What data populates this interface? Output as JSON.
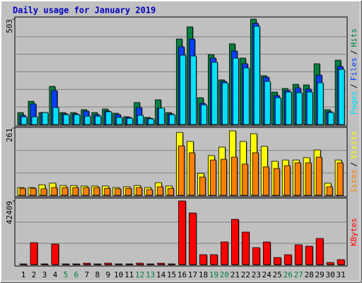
{
  "chart_data": [
    {
      "type": "bar",
      "title": "Daily usage for January 2019",
      "ylim": [
        0,
        503
      ],
      "yticks": [
        503
      ],
      "grid": true,
      "grid_divisions": 6,
      "legend_separator": "/",
      "series": [
        {
          "name": "Hits",
          "color": "#008040",
          "values": [
            57,
            111,
            57,
            182,
            57,
            57,
            71,
            57,
            74,
            54,
            37,
            105,
            34,
            118,
            57,
            408,
            466,
            128,
            334,
            213,
            385,
            317,
            503,
            233,
            155,
            172,
            192,
            189,
            290,
            71,
            307
          ]
        },
        {
          "name": "Files",
          "color": "#0040ff",
          "values": [
            44,
            98,
            57,
            162,
            51,
            51,
            64,
            47,
            64,
            47,
            34,
            81,
            30,
            78,
            51,
            371,
            408,
            101,
            317,
            206,
            351,
            290,
            483,
            226,
            138,
            162,
            175,
            169,
            236,
            61,
            277
          ]
        },
        {
          "name": "Pages",
          "color": "#00e0ff",
          "values": [
            37,
            37,
            57,
            81,
            47,
            47,
            40,
            40,
            61,
            34,
            30,
            44,
            27,
            78,
            47,
            331,
            327,
            94,
            297,
            199,
            317,
            270,
            469,
            206,
            128,
            155,
            152,
            155,
            199,
            57,
            263
          ]
        }
      ]
    },
    {
      "type": "bar",
      "ylim": [
        0,
        261
      ],
      "yticks": [
        261
      ],
      "grid": true,
      "grid_divisions": 3,
      "legend_separator": "/",
      "series": [
        {
          "name": "Visits",
          "color": "#ffff00",
          "values": [
            30,
            30,
            41,
            47,
            38,
            38,
            36,
            36,
            36,
            30,
            33,
            38,
            30,
            49,
            36,
            244,
            209,
            85,
            154,
            187,
            250,
            209,
            239,
            190,
            132,
            137,
            137,
            146,
            176,
            47,
            137
          ]
        },
        {
          "name": "Sites",
          "color": "#ff8000",
          "values": [
            27,
            27,
            25,
            30,
            30,
            30,
            30,
            30,
            27,
            25,
            27,
            30,
            22,
            33,
            27,
            192,
            165,
            71,
            137,
            140,
            148,
            121,
            165,
            110,
            104,
            115,
            126,
            126,
            148,
            33,
            126
          ]
        }
      ]
    },
    {
      "type": "bar",
      "ylim": [
        0,
        42409
      ],
      "yticks": [
        42409
      ],
      "grid": true,
      "grid_divisions": 3,
      "categories": [
        "1",
        "2",
        "3",
        "4",
        "5",
        "6",
        "7",
        "8",
        "9",
        "10",
        "11",
        "12",
        "13",
        "14",
        "15",
        "16",
        "17",
        "18",
        "19",
        "20",
        "21",
        "22",
        "23",
        "24",
        "25",
        "26",
        "27",
        "28",
        "29",
        "30",
        "31"
      ],
      "weekend_days": [
        "5",
        "6",
        "12",
        "13",
        "19",
        "20",
        "26",
        "27"
      ],
      "weekend_color": "#008040",
      "series": [
        {
          "name": "KBytes",
          "color": "#ff0000",
          "values": [
            470,
            14607,
            470,
            13665,
            470,
            470,
            942,
            470,
            942,
            470,
            470,
            942,
            470,
            942,
            470,
            42409,
            34398,
            6597,
            6597,
            15078,
            30157,
            21676,
            11308,
            15078,
            4712,
            6597,
            13194,
            12250,
            17434,
            1414,
            3299
          ]
        }
      ]
    }
  ]
}
